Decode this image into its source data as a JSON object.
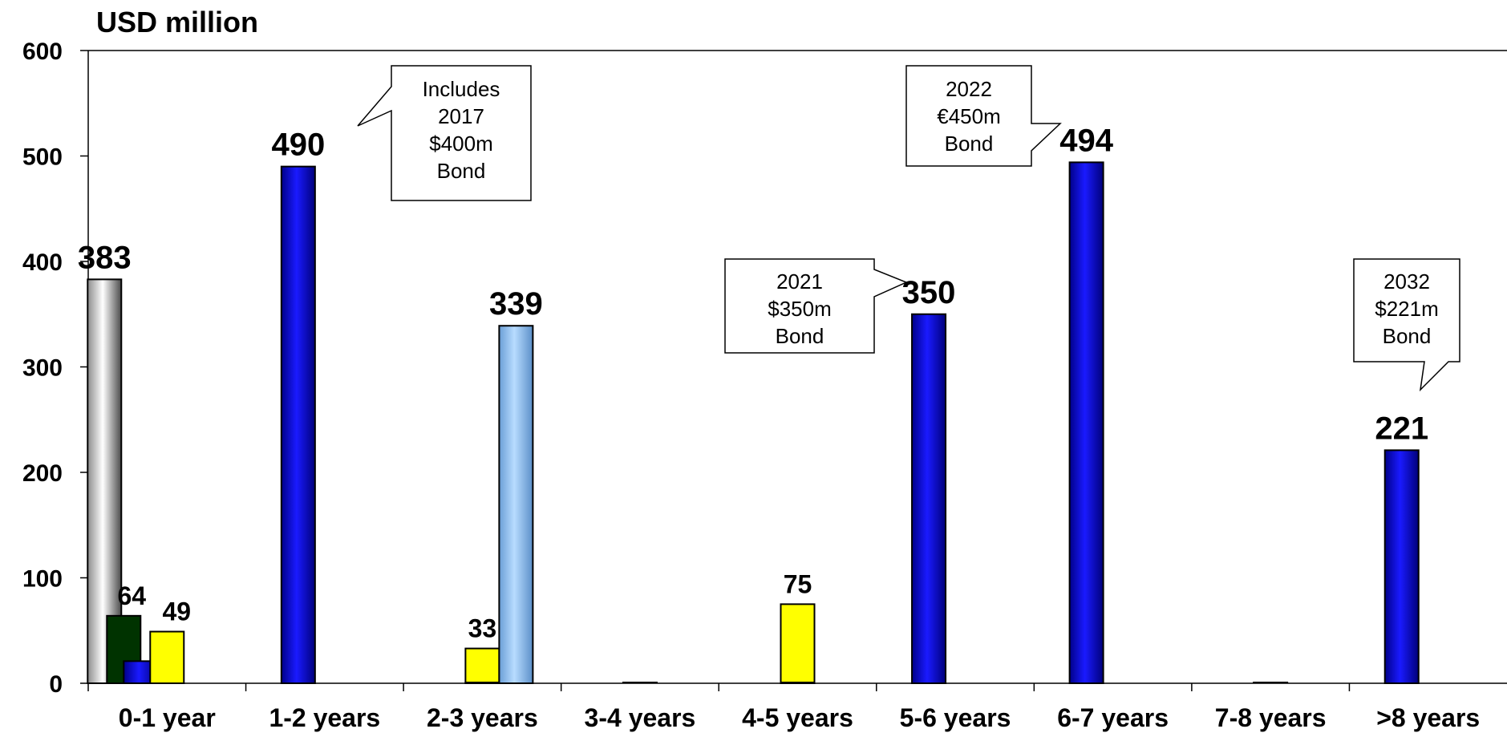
{
  "chart_data": {
    "type": "bar",
    "ylabel": "USD million",
    "ylim": [
      0,
      600
    ],
    "yticks": [
      0,
      100,
      200,
      300,
      400,
      500,
      600
    ],
    "grid": false,
    "categories": [
      "0-1 year",
      "1-2 years",
      "2-3 years",
      "3-4 years",
      "4-5 years",
      "5-6 years",
      "6-7 years",
      "7-8 years",
      ">8 years"
    ],
    "series": [
      {
        "fill": "silver",
        "values": [
          383,
          0,
          0,
          0,
          0,
          0,
          0,
          0,
          0
        ]
      },
      {
        "fill": "darkgreen",
        "values": [
          64,
          0,
          0,
          0,
          0,
          0,
          0,
          0,
          0
        ]
      },
      {
        "fill": "blue",
        "values": [
          21,
          490,
          0,
          0,
          0,
          350,
          494,
          0,
          221
        ]
      },
      {
        "fill": "yellow",
        "values": [
          49,
          0,
          33,
          0,
          75,
          0,
          0,
          0,
          0
        ]
      },
      {
        "fill": "lightblue",
        "values": [
          0,
          0,
          339,
          0,
          0,
          0,
          0,
          0,
          0
        ]
      }
    ],
    "data_labels": [
      {
        "category": 0,
        "series": 0,
        "text": "383"
      },
      {
        "category": 0,
        "series": 1,
        "text": "64"
      },
      {
        "category": 0,
        "series": 3,
        "text": "49"
      },
      {
        "category": 1,
        "series": 2,
        "text": "490"
      },
      {
        "category": 2,
        "series": 3,
        "text": "33"
      },
      {
        "category": 2,
        "series": 4,
        "text": "339"
      },
      {
        "category": 4,
        "series": 3,
        "text": "75"
      },
      {
        "category": 5,
        "series": 2,
        "text": "350"
      },
      {
        "category": 6,
        "series": 2,
        "text": "494"
      },
      {
        "category": 8,
        "series": 2,
        "text": "221"
      }
    ],
    "callouts": [
      {
        "lines": [
          "Includes",
          "2017",
          "$400m",
          "Bond"
        ],
        "points_to": "1-2 years"
      },
      {
        "lines": [
          "2022",
          "€450m",
          "Bond"
        ],
        "points_to": "6-7 years"
      },
      {
        "lines": [
          "2021",
          "$350m",
          "Bond"
        ],
        "points_to": "5-6 years"
      },
      {
        "lines": [
          "2032",
          "$221m",
          "Bond"
        ],
        "points_to": ">8 years"
      }
    ]
  },
  "colors": {
    "darkgreen": "#003300",
    "blue": "#0000ee",
    "yellow": "#ffff00",
    "lightblue": "#99ccff",
    "silver": "#c0c0c0",
    "axis": "#000000"
  }
}
